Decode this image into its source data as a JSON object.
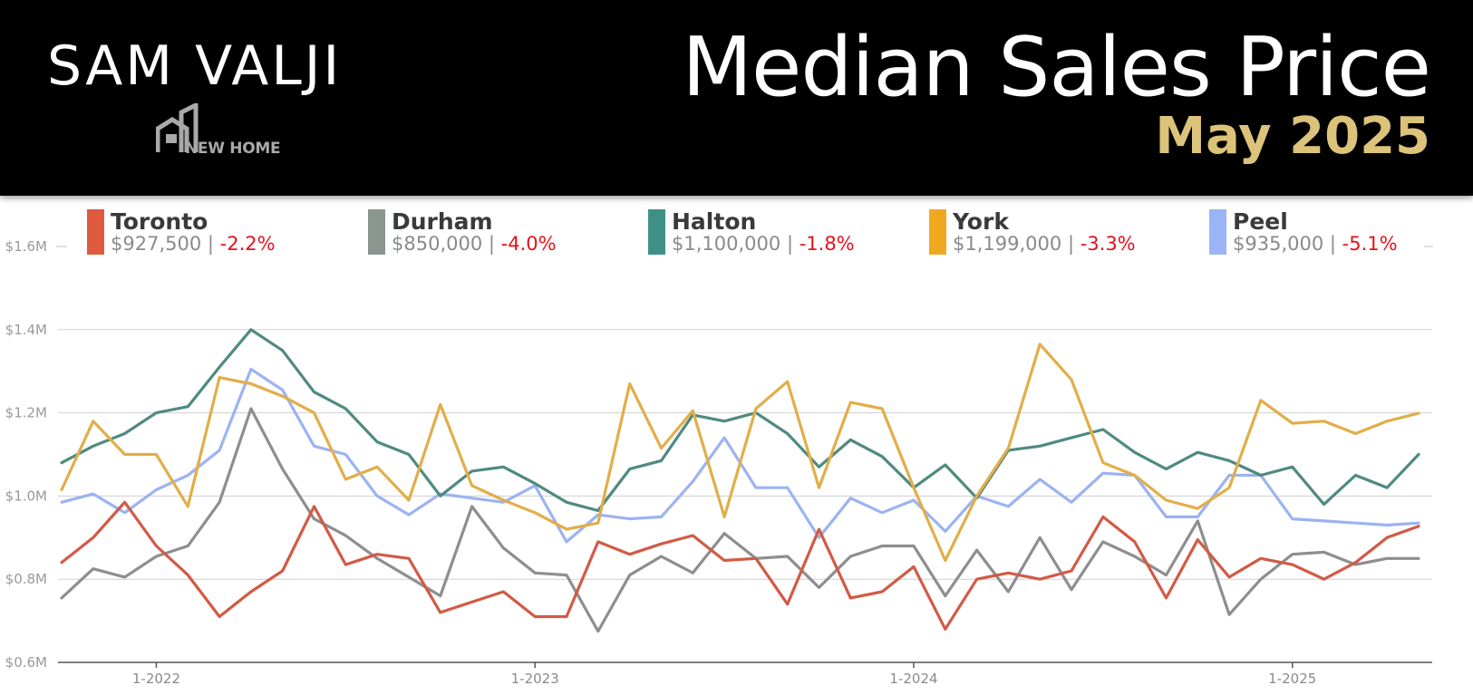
{
  "header": {
    "brand": "SAM VALJI",
    "logo_text": "NEW HOME",
    "title": "Median Sales Price",
    "subtitle": "May 2025"
  },
  "legend": [
    {
      "name": "Toronto",
      "value": "$927,500",
      "separator": "|",
      "change": "-2.2%",
      "color": "#e05a3f"
    },
    {
      "name": "Durham",
      "value": "$850,000",
      "separator": "|",
      "change": "-4.0%",
      "color": "#8c9690"
    },
    {
      "name": "Halton",
      "value": "$1,100,000",
      "separator": "|",
      "change": "-1.8%",
      "color": "#3f9186"
    },
    {
      "name": "York",
      "value": "$1,199,000",
      "separator": "|",
      "change": "-3.3%",
      "color": "#efa91f"
    },
    {
      "name": "Peel",
      "value": "$935,000",
      "separator": "|",
      "change": "-5.1%",
      "color": "#9bb4f6"
    }
  ],
  "chart_data": {
    "type": "line",
    "title": "Median Sales Price",
    "subtitle": "May 2025",
    "x": [
      "10-2021",
      "11-2021",
      "12-2021",
      "1-2022",
      "2-2022",
      "3-2022",
      "4-2022",
      "5-2022",
      "6-2022",
      "7-2022",
      "8-2022",
      "9-2022",
      "10-2022",
      "11-2022",
      "12-2022",
      "1-2023",
      "2-2023",
      "3-2023",
      "4-2023",
      "5-2023",
      "6-2023",
      "7-2023",
      "8-2023",
      "9-2023",
      "10-2023",
      "11-2023",
      "12-2023",
      "1-2024",
      "2-2024",
      "3-2024",
      "4-2024",
      "5-2024",
      "6-2024",
      "7-2024",
      "8-2024",
      "9-2024",
      "10-2024",
      "11-2024",
      "12-2024",
      "1-2025",
      "2-2025",
      "3-2025",
      "4-2025",
      "5-2025"
    ],
    "x_tick_labels": [
      "1-2022",
      "1-2023",
      "1-2024",
      "1-2025"
    ],
    "y_tick_labels": [
      "$0.6M",
      "$0.8M",
      "$1.0M",
      "$1.2M",
      "$1.4M",
      "$1.6M"
    ],
    "ylim": [
      600000,
      1600000
    ],
    "grid": true,
    "legend_position": "top",
    "series": [
      {
        "name": "Toronto",
        "color": "#d25a45",
        "values": [
          840000,
          900000,
          985000,
          880000,
          810000,
          710000,
          770000,
          820000,
          975000,
          835000,
          860000,
          850000,
          720000,
          745000,
          770000,
          710000,
          710000,
          890000,
          860000,
          885000,
          905000,
          845000,
          850000,
          740000,
          920000,
          755000,
          770000,
          830000,
          680000,
          800000,
          815000,
          800000,
          820000,
          950000,
          890000,
          755000,
          895000,
          805000,
          850000,
          835000,
          800000,
          840000,
          900000,
          927500
        ]
      },
      {
        "name": "Durham",
        "color": "#8e8e8e",
        "values": [
          755000,
          825000,
          805000,
          855000,
          880000,
          985000,
          1210000,
          1065000,
          945000,
          905000,
          850000,
          805000,
          760000,
          975000,
          875000,
          815000,
          810000,
          675000,
          810000,
          855000,
          815000,
          910000,
          850000,
          855000,
          780000,
          855000,
          880000,
          880000,
          760000,
          870000,
          770000,
          900000,
          775000,
          890000,
          855000,
          810000,
          940000,
          715000,
          800000,
          860000,
          865000,
          835000,
          850000,
          850000
        ]
      },
      {
        "name": "Halton",
        "color": "#4f8a80",
        "values": [
          1080000,
          1120000,
          1150000,
          1200000,
          1215000,
          1310000,
          1400000,
          1350000,
          1250000,
          1210000,
          1130000,
          1100000,
          1000000,
          1060000,
          1070000,
          1030000,
          985000,
          965000,
          1065000,
          1085000,
          1195000,
          1180000,
          1200000,
          1150000,
          1070000,
          1135000,
          1095000,
          1020000,
          1075000,
          995000,
          1110000,
          1120000,
          1140000,
          1160000,
          1105000,
          1065000,
          1105000,
          1085000,
          1050000,
          1070000,
          980000,
          1050000,
          1020000,
          1100000
        ]
      },
      {
        "name": "York",
        "color": "#e1ae49",
        "values": [
          1015000,
          1180000,
          1100000,
          1100000,
          975000,
          1285000,
          1270000,
          1240000,
          1200000,
          1040000,
          1070000,
          990000,
          1220000,
          1025000,
          990000,
          960000,
          920000,
          935000,
          1270000,
          1115000,
          1205000,
          950000,
          1210000,
          1275000,
          1020000,
          1225000,
          1210000,
          1020000,
          845000,
          1000000,
          1115000,
          1365000,
          1280000,
          1080000,
          1050000,
          990000,
          970000,
          1020000,
          1230000,
          1175000,
          1180000,
          1150000,
          1180000,
          1199000
        ]
      },
      {
        "name": "Peel",
        "color": "#9cb3f2",
        "values": [
          985000,
          1005000,
          960000,
          1015000,
          1050000,
          1110000,
          1305000,
          1255000,
          1120000,
          1100000,
          1000000,
          955000,
          1005000,
          995000,
          985000,
          1025000,
          890000,
          955000,
          945000,
          950000,
          1035000,
          1140000,
          1020000,
          1020000,
          900000,
          995000,
          960000,
          990000,
          915000,
          1000000,
          975000,
          1040000,
          985000,
          1055000,
          1050000,
          950000,
          950000,
          1050000,
          1050000,
          945000,
          940000,
          935000,
          930000,
          935000
        ]
      }
    ]
  }
}
